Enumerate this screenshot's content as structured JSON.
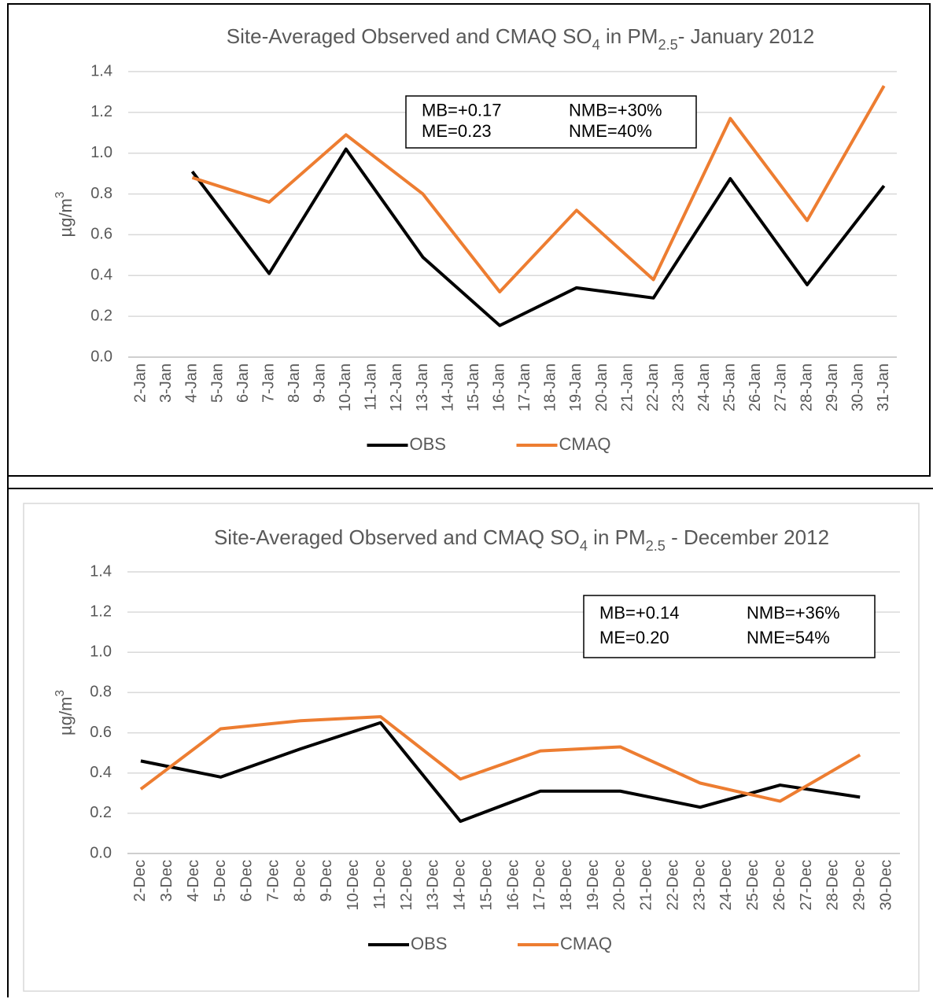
{
  "chart_data": [
    {
      "type": "line",
      "title": [
        "Site-Averaged Observed and CMAQ SO",
        "4",
        " in PM",
        "2.5",
        "- January 2012"
      ],
      "ylabel": [
        "µg/m",
        "3"
      ],
      "categories": [
        "2-Jan",
        "3-Jan",
        "4-Jan",
        "5-Jan",
        "6-Jan",
        "7-Jan",
        "8-Jan",
        "9-Jan",
        "10-Jan",
        "11-Jan",
        "12-Jan",
        "13-Jan",
        "14-Jan",
        "15-Jan",
        "16-Jan",
        "17-Jan",
        "18-Jan",
        "19-Jan",
        "20-Jan",
        "21-Jan",
        "22-Jan",
        "23-Jan",
        "24-Jan",
        "25-Jan",
        "26-Jan",
        "27-Jan",
        "28-Jan",
        "29-Jan",
        "30-Jan",
        "31-Jan"
      ],
      "series": [
        {
          "name": "OBS",
          "color": "#000000",
          "values": [
            null,
            null,
            0.91,
            null,
            null,
            0.41,
            null,
            null,
            1.02,
            null,
            null,
            0.49,
            null,
            null,
            0.155,
            null,
            null,
            0.34,
            null,
            null,
            0.29,
            null,
            null,
            0.875,
            null,
            null,
            0.355,
            null,
            null,
            0.84
          ]
        },
        {
          "name": "CMAQ",
          "color": "#ed7d31",
          "values": [
            null,
            null,
            0.88,
            null,
            null,
            0.76,
            null,
            null,
            1.09,
            null,
            null,
            0.8,
            null,
            null,
            0.32,
            null,
            null,
            0.72,
            null,
            null,
            0.38,
            null,
            null,
            1.17,
            null,
            null,
            0.67,
            null,
            null,
            1.33
          ]
        }
      ],
      "stats": [
        "MB=+0.17",
        "NMB=+30%",
        "ME=0.23",
        "NME=40%"
      ],
      "ylim": [
        0,
        1.4
      ],
      "yticks": [
        {
          "value": 0,
          "label": "0.0"
        },
        0.2,
        0.4,
        0.6,
        0.8,
        {
          "value": 1,
          "label": "1.0"
        },
        1.2,
        1.4
      ],
      "grid": true,
      "connect_gaps": true,
      "legend": "bottom"
    },
    {
      "type": "line",
      "title": [
        "Site-Averaged Observed and CMAQ SO",
        "4",
        " in PM",
        "2.5",
        " - December 2012"
      ],
      "ylabel": [
        "µg/m",
        "3"
      ],
      "categories": [
        "2-Dec",
        "3-Dec",
        "4-Dec",
        "5-Dec",
        "6-Dec",
        "7-Dec",
        "8-Dec",
        "9-Dec",
        "10-Dec",
        "11-Dec",
        "12-Dec",
        "13-Dec",
        "14-Dec",
        "15-Dec",
        "16-Dec",
        "17-Dec",
        "18-Dec",
        "19-Dec",
        "20-Dec",
        "21-Dec",
        "22-Dec",
        "23-Dec",
        "24-Dec",
        "25-Dec",
        "26-Dec",
        "27-Dec",
        "28-Dec",
        "29-Dec",
        "30-Dec"
      ],
      "series": [
        {
          "name": "OBS",
          "color": "#000000",
          "values": [
            0.46,
            null,
            null,
            0.38,
            null,
            null,
            0.52,
            null,
            null,
            0.65,
            null,
            null,
            0.16,
            null,
            null,
            0.31,
            null,
            null,
            0.31,
            null,
            null,
            0.23,
            null,
            null,
            0.34,
            null,
            null,
            0.28,
            null
          ]
        },
        {
          "name": "CMAQ",
          "color": "#ed7d31",
          "values": [
            0.32,
            null,
            null,
            0.62,
            null,
            null,
            0.66,
            null,
            null,
            0.68,
            null,
            null,
            0.37,
            null,
            null,
            0.51,
            null,
            null,
            0.53,
            null,
            null,
            0.35,
            null,
            null,
            0.26,
            null,
            null,
            0.49,
            null
          ]
        }
      ],
      "stats": [
        "MB=+0.14",
        "NMB=+36%",
        "ME=0.20",
        "NME=54%"
      ],
      "ylim": [
        0,
        1.4
      ],
      "yticks": [
        {
          "value": 0,
          "label": "0.0"
        },
        0.2,
        0.4,
        0.6,
        0.8,
        {
          "value": 1,
          "label": "1.0"
        },
        1.2,
        1.4
      ],
      "grid": true,
      "connect_gaps": true,
      "legend": "bottom"
    }
  ]
}
